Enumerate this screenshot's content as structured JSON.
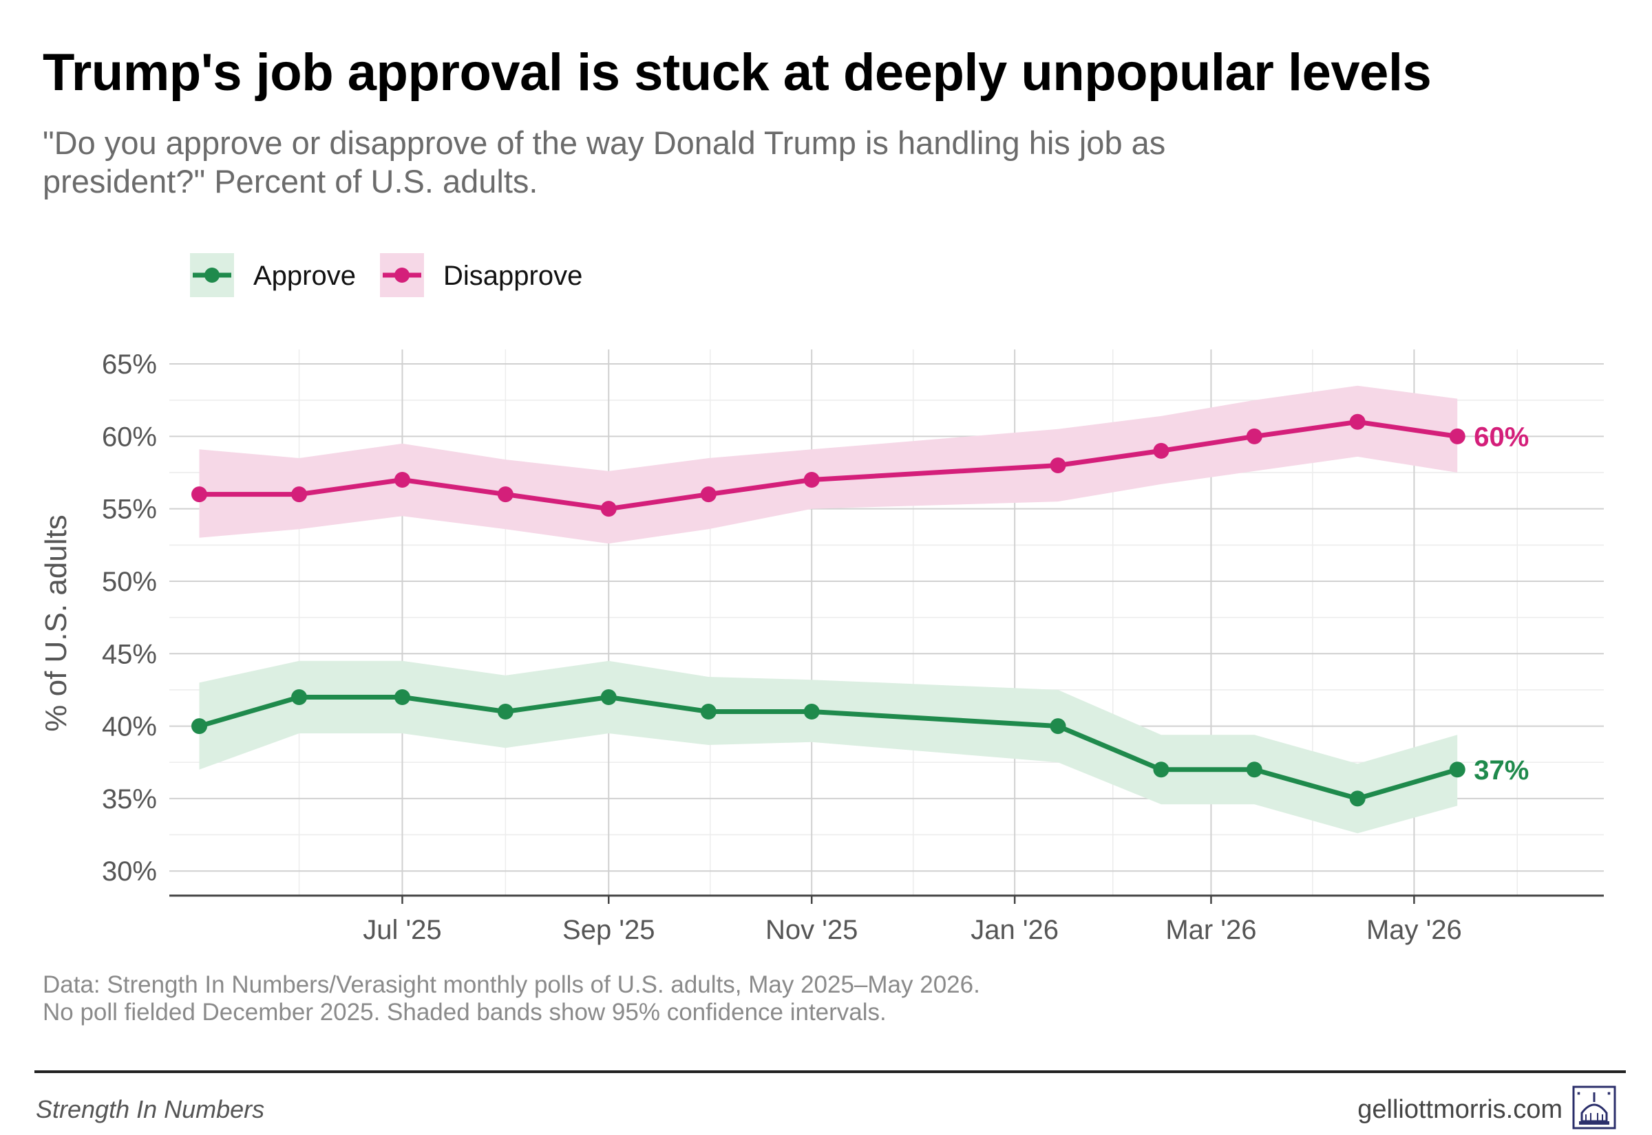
{
  "title": "Trump's job approval is stuck at deeply unpopular levels",
  "subtitle": "\"Do you approve or disapprove of the way Donald Trump is handling his job as president?\" Percent of U.S. adults.",
  "footnote": {
    "line1": "Data: Strength In Numbers/Verasight monthly polls of U.S. adults, May 2025–May 2026.",
    "line2": "No poll fielded December 2025. Shaded bands show 95% confidence intervals."
  },
  "footer": {
    "left": "Strength In Numbers",
    "right": "gelliottmorris.com",
    "logo_icon": "capitol-dome-icon"
  },
  "chart_data": {
    "type": "line",
    "ylabel": "% of U.S. adults",
    "xlabel": "",
    "ylim": [
      28.3,
      66
    ],
    "xlim": [
      "2025-04-22",
      "2026-06-27"
    ],
    "y_ticks": [
      30,
      35,
      40,
      45,
      50,
      55,
      60,
      65
    ],
    "y_tick_labels": [
      "30%",
      "35%",
      "40%",
      "45%",
      "50%",
      "55%",
      "60%",
      "65%"
    ],
    "x_ticks": [
      "2025-07-01",
      "2025-09-01",
      "2025-11-01",
      "2026-01-01",
      "2026-03-01",
      "2026-05-01"
    ],
    "x_tick_labels": [
      "Jul '25",
      "Sep '25",
      "Nov '25",
      "Jan '26",
      "Mar '26",
      "May '26"
    ],
    "grid": true,
    "legend_position": "top-left",
    "series": [
      {
        "name": "Approve",
        "color": "#1f8a4c",
        "band_color": "#dcefe2",
        "end_label": "37%",
        "x": [
          "2025-05-01",
          "2025-05-31",
          "2025-07-01",
          "2025-08-01",
          "2025-09-01",
          "2025-10-01",
          "2025-11-01",
          "2026-01-14",
          "2026-02-14",
          "2026-03-14",
          "2026-04-14",
          "2026-05-14"
        ],
        "y": [
          40,
          42,
          42,
          41,
          42,
          41,
          41,
          40,
          37,
          37,
          35,
          37
        ],
        "lower": [
          37,
          39.5,
          39.5,
          38.5,
          39.5,
          38.7,
          38.9,
          37.5,
          34.6,
          34.6,
          32.6,
          34.5
        ],
        "upper": [
          43,
          44.5,
          44.5,
          43.5,
          44.5,
          43.4,
          43.2,
          42.5,
          39.4,
          39.4,
          37.4,
          39.4
        ]
      },
      {
        "name": "Disapprove",
        "color": "#d41f7a",
        "band_color": "#f6d8e7",
        "end_label": "60%",
        "x": [
          "2025-05-01",
          "2025-05-31",
          "2025-07-01",
          "2025-08-01",
          "2025-09-01",
          "2025-10-01",
          "2025-11-01",
          "2026-01-14",
          "2026-02-14",
          "2026-03-14",
          "2026-04-14",
          "2026-05-14"
        ],
        "y": [
          56,
          56,
          57,
          56,
          55,
          56,
          57,
          58,
          59,
          60,
          61,
          60
        ],
        "lower": [
          53,
          53.6,
          54.5,
          53.6,
          52.6,
          53.6,
          55,
          55.5,
          56.7,
          57.6,
          58.6,
          57.5
        ],
        "upper": [
          59.1,
          58.5,
          59.5,
          58.4,
          57.6,
          58.5,
          59.1,
          60.5,
          61.4,
          62.5,
          63.5,
          62.6
        ]
      }
    ]
  }
}
